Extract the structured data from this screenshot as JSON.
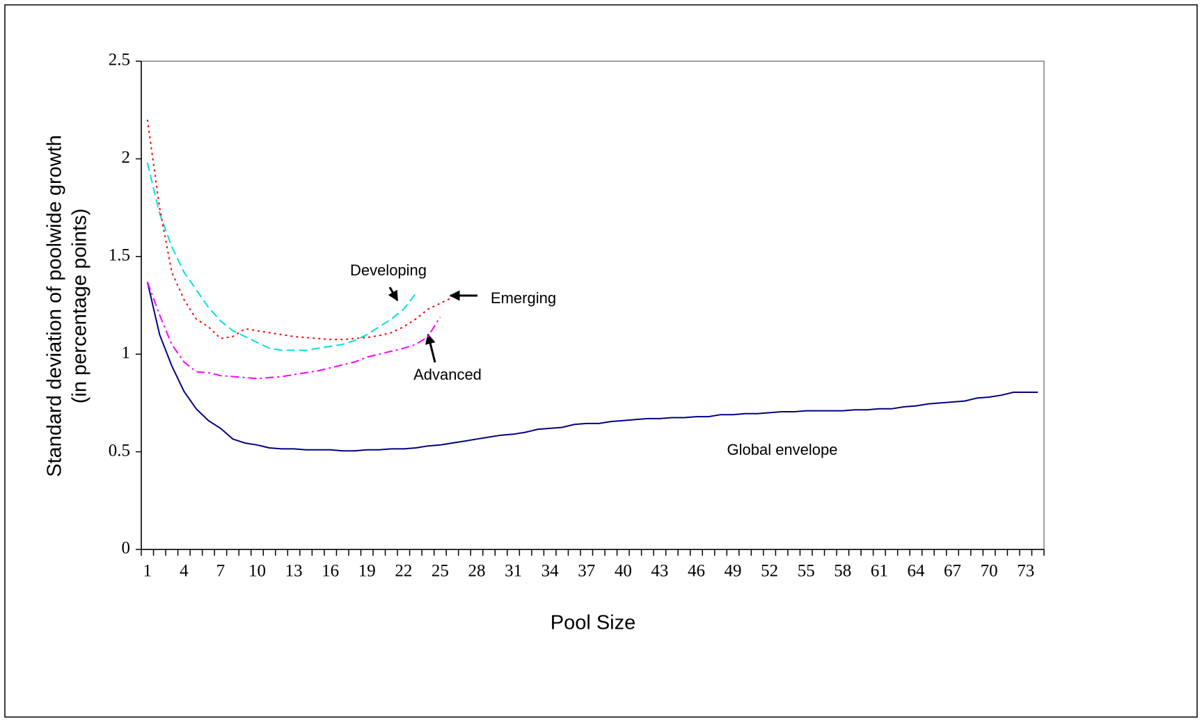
{
  "chart_data": {
    "type": "line",
    "xlabel": "Pool Size",
    "ylabel": [
      "Standard deviation of poolwide growth",
      "(in percentage points)"
    ],
    "categories": [
      1,
      null,
      null,
      4,
      null,
      null,
      7,
      null,
      null,
      10,
      null,
      null,
      13,
      null,
      null,
      16,
      null,
      null,
      19,
      null,
      null,
      22,
      null,
      null,
      25,
      null,
      null,
      28,
      null,
      null,
      31,
      null,
      null,
      34,
      null,
      null,
      37,
      null,
      null,
      40,
      null,
      null,
      43,
      null,
      null,
      46,
      null,
      null,
      49,
      null,
      null,
      52,
      null,
      null,
      55,
      null,
      null,
      58,
      null,
      null,
      61,
      null,
      null,
      64,
      null,
      null,
      67,
      null,
      null,
      70,
      null,
      null,
      73,
      null
    ],
    "ylim": [
      0,
      2.5
    ],
    "yticks": [
      0,
      0.5,
      1,
      1.5,
      2,
      2.5
    ],
    "series": [
      {
        "name": "Global envelope",
        "color": "#000080",
        "dash": "solid",
        "values": [
          1.37,
          1.1,
          0.94,
          0.81,
          0.72,
          0.66,
          0.62,
          0.565,
          0.545,
          0.535,
          0.52,
          0.515,
          0.515,
          0.51,
          0.51,
          0.51,
          0.505,
          0.505,
          0.51,
          0.51,
          0.515,
          0.515,
          0.52,
          0.53,
          0.535,
          0.545,
          0.555,
          0.565,
          0.575,
          0.585,
          0.59,
          0.6,
          0.615,
          0.62,
          0.625,
          0.64,
          0.645,
          0.645,
          0.655,
          0.66,
          0.665,
          0.67,
          0.67,
          0.675,
          0.675,
          0.68,
          0.68,
          0.69,
          0.69,
          0.695,
          0.695,
          0.7,
          0.705,
          0.705,
          0.71,
          0.71,
          0.71,
          0.71,
          0.715,
          0.715,
          0.72,
          0.72,
          0.73,
          0.735,
          0.745,
          0.75,
          0.755,
          0.76,
          0.775,
          0.78,
          0.79,
          0.805,
          0.805,
          0.805
        ]
      },
      {
        "name": "Developing",
        "color": "#00e0e0",
        "dash": "dashed",
        "values": [
          1.98,
          1.72,
          1.55,
          1.42,
          1.33,
          1.24,
          1.17,
          1.12,
          1.09,
          1.06,
          1.03,
          1.02,
          1.02,
          1.02,
          1.03,
          1.04,
          1.05,
          1.07,
          1.1,
          1.14,
          1.18,
          1.23,
          1.31,
          null,
          null,
          null,
          null,
          null,
          null,
          null,
          null,
          null,
          null,
          null,
          null,
          null,
          null,
          null,
          null,
          null,
          null,
          null,
          null,
          null,
          null,
          null,
          null,
          null,
          null,
          null,
          null,
          null,
          null,
          null,
          null,
          null,
          null,
          null,
          null,
          null,
          null,
          null,
          null,
          null,
          null,
          null,
          null,
          null,
          null,
          null,
          null,
          null,
          null,
          null
        ]
      },
      {
        "name": "Emerging",
        "color": "#ff0000",
        "dash": "dotted",
        "values": [
          2.2,
          1.75,
          1.42,
          1.28,
          1.18,
          1.14,
          1.08,
          1.09,
          1.13,
          1.12,
          1.11,
          1.1,
          1.09,
          1.085,
          1.08,
          1.075,
          1.075,
          1.08,
          1.085,
          1.095,
          1.11,
          1.14,
          1.18,
          1.23,
          1.26,
          1.29,
          null,
          null,
          null,
          null,
          null,
          null,
          null,
          null,
          null,
          null,
          null,
          null,
          null,
          null,
          null,
          null,
          null,
          null,
          null,
          null,
          null,
          null,
          null,
          null,
          null,
          null,
          null,
          null,
          null,
          null,
          null,
          null,
          null,
          null,
          null,
          null,
          null,
          null,
          null,
          null,
          null,
          null,
          null,
          null,
          null,
          null,
          null,
          null
        ]
      },
      {
        "name": "Advanced",
        "color": "#ff00ff",
        "dash": "dashdot",
        "values": [
          1.37,
          1.2,
          1.05,
          0.96,
          0.91,
          0.905,
          0.89,
          0.885,
          0.88,
          0.875,
          0.88,
          0.885,
          0.895,
          0.905,
          0.915,
          0.93,
          0.945,
          0.96,
          0.985,
          1.0,
          1.015,
          1.03,
          1.05,
          1.09,
          1.19,
          null,
          null,
          null,
          null,
          null,
          null,
          null,
          null,
          null,
          null,
          null,
          null,
          null,
          null,
          null,
          null,
          null,
          null,
          null,
          null,
          null,
          null,
          null,
          null,
          null,
          null,
          null,
          null,
          null,
          null,
          null,
          null,
          null,
          null,
          null,
          null,
          null,
          null,
          null,
          null,
          null,
          null,
          null,
          null,
          null,
          null,
          null,
          null,
          null
        ]
      }
    ]
  }
}
